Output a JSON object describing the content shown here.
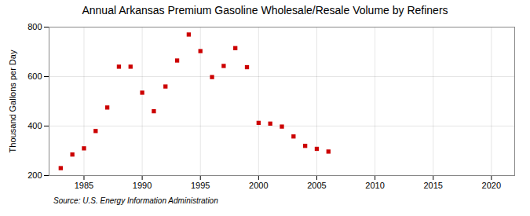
{
  "chart_data": {
    "type": "scatter",
    "title": "Annual Arkansas Premium Gasoline Wholesale/Resale Volume by Refiners",
    "ylabel": "Thousand Gallons per Day",
    "annotations": [
      "Source: U.S. Energy Information Administration"
    ],
    "x": [
      1983,
      1984,
      1985,
      1986,
      1987,
      1988,
      1989,
      1990,
      1991,
      1992,
      1993,
      1994,
      1995,
      1996,
      1997,
      1998,
      1999,
      2000,
      2001,
      2002,
      2003,
      2004,
      2005,
      2006
    ],
    "values": [
      230,
      285,
      310,
      380,
      475,
      640,
      640,
      535,
      460,
      560,
      665,
      770,
      703,
      598,
      643,
      715,
      638,
      413,
      410,
      398,
      358,
      320,
      308,
      297
    ],
    "color": "#cc0000",
    "marker": "square",
    "xlim": [
      1982,
      2022
    ],
    "ylim": [
      200,
      800
    ],
    "xticks": [
      1985,
      1990,
      1995,
      2000,
      2005,
      2010,
      2015,
      2020
    ],
    "yticks": [
      200,
      400,
      600,
      800
    ],
    "grid": true
  }
}
